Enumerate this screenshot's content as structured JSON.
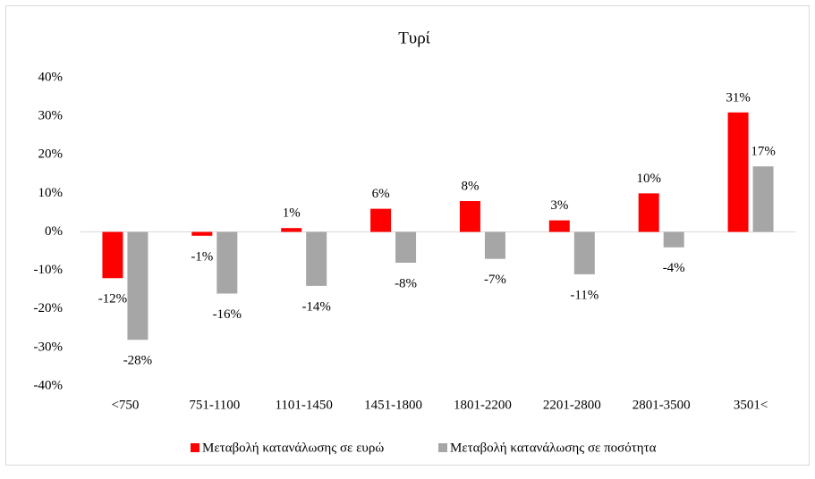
{
  "chart_data": {
    "type": "bar",
    "title": "Τυρί",
    "categories": [
      "<750",
      "751-1100",
      "1101-1450",
      "1451-1800",
      "1801-2200",
      "2201-2800",
      "2801-3500",
      "3501<"
    ],
    "series": [
      {
        "name": "Μεταβολή κατανάλωσης σε ευρώ",
        "color": "#ff0000",
        "values": [
          -12,
          -1,
          1,
          6,
          8,
          3,
          10,
          31
        ],
        "value_labels": [
          "-12%",
          "-1%",
          "1%",
          "6%",
          "8%",
          "3%",
          "10%",
          "31%"
        ]
      },
      {
        "name": "Μεταβολή κατανάλωσης σε ποσότητα",
        "color": "#a6a6a6",
        "values": [
          -28,
          -16,
          -14,
          -8,
          -7,
          -11,
          -4,
          17
        ],
        "value_labels": [
          "-28%",
          "-16%",
          "-14%",
          "-8%",
          "-7%",
          "-11%",
          "-4%",
          "17%"
        ]
      }
    ],
    "ylim": [
      -40,
      40
    ],
    "yticks": [
      {
        "value": -40,
        "label": "-40%"
      },
      {
        "value": -30,
        "label": "-30%"
      },
      {
        "value": -20,
        "label": "-20%"
      },
      {
        "value": -10,
        "label": "-10%"
      },
      {
        "value": 0,
        "label": "0%"
      },
      {
        "value": 10,
        "label": "10%"
      },
      {
        "value": 20,
        "label": "20%"
      },
      {
        "value": 30,
        "label": "30%"
      },
      {
        "value": 40,
        "label": "40%"
      }
    ],
    "grid": false,
    "legend": "bottom"
  }
}
